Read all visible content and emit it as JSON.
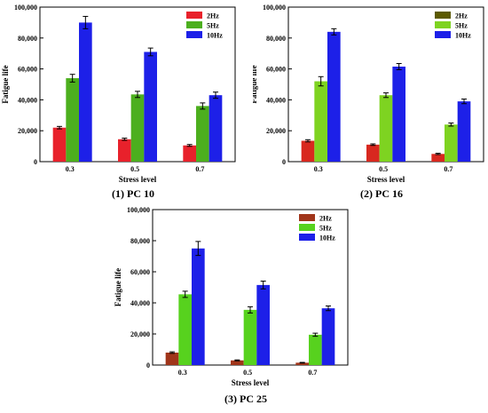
{
  "chart_data": [
    {
      "type": "bar",
      "title": "(1) PC 10",
      "xlabel": "Stress level",
      "ylabel": "Fatigue life",
      "categories": [
        "0.3",
        "0.5",
        "0.7"
      ],
      "ylim": [
        0,
        100000
      ],
      "yticks": [
        "0",
        "20,000",
        "40,000",
        "60,000",
        "80,000",
        "100,000"
      ],
      "legend_position": "top-right",
      "series": [
        {
          "name": "2Hz",
          "color": "#e8212b",
          "values": [
            22000,
            14500,
            10500
          ],
          "errors": [
            800,
            700,
            600
          ]
        },
        {
          "name": "5Hz",
          "color": "#4caf1e",
          "values": [
            54000,
            43500,
            36000
          ],
          "errors": [
            2500,
            2000,
            2000
          ]
        },
        {
          "name": "10Hz",
          "color": "#1d20e8",
          "values": [
            90000,
            71000,
            43000
          ],
          "errors": [
            4000,
            2500,
            2000
          ]
        }
      ]
    },
    {
      "type": "bar",
      "title": "(2) PC 16",
      "xlabel": "Stress level",
      "ylabel": "Fatigue life",
      "categories": [
        "0.3",
        "0.5",
        "0.7"
      ],
      "ylim": [
        0,
        100000
      ],
      "yticks": [
        "0",
        "20,000",
        "40,000",
        "60,000",
        "80,000",
        "100,000"
      ],
      "legend_position": "top-right",
      "series": [
        {
          "name": "2Hz",
          "color": "#d8281f",
          "values": [
            13500,
            11000,
            5000
          ],
          "errors": [
            700,
            500,
            400
          ]
        },
        {
          "name": "5Hz",
          "color": "#7ed321",
          "values": [
            52000,
            43000,
            24000
          ],
          "errors": [
            3000,
            1500,
            1000
          ]
        },
        {
          "name": "10Hz",
          "color": "#1d20e8",
          "values": [
            84000,
            61500,
            39000
          ],
          "errors": [
            2000,
            2000,
            1500
          ]
        }
      ],
      "legend_swatches": [
        "#5c5a00",
        "#7ed321",
        "#1d20e8"
      ]
    },
    {
      "type": "bar",
      "title": "(3) PC 25",
      "xlabel": "Stress level",
      "ylabel": "Fatigue life",
      "categories": [
        "0.3",
        "0.5",
        "0.7"
      ],
      "ylim": [
        0,
        100000
      ],
      "yticks": [
        "0",
        "20,000",
        "40,000",
        "60,000",
        "80,000",
        "100,000"
      ],
      "legend_position": "top-right",
      "series": [
        {
          "name": "2Hz",
          "color": "#a0351a",
          "values": [
            8000,
            3000,
            1500
          ],
          "errors": [
            500,
            300,
            200
          ]
        },
        {
          "name": "5Hz",
          "color": "#57d21e",
          "values": [
            45500,
            35500,
            19500
          ],
          "errors": [
            2000,
            2000,
            1000
          ]
        },
        {
          "name": "10Hz",
          "color": "#1d20e8",
          "values": [
            75000,
            51500,
            36500
          ],
          "errors": [
            4500,
            2500,
            1500
          ]
        }
      ]
    }
  ]
}
